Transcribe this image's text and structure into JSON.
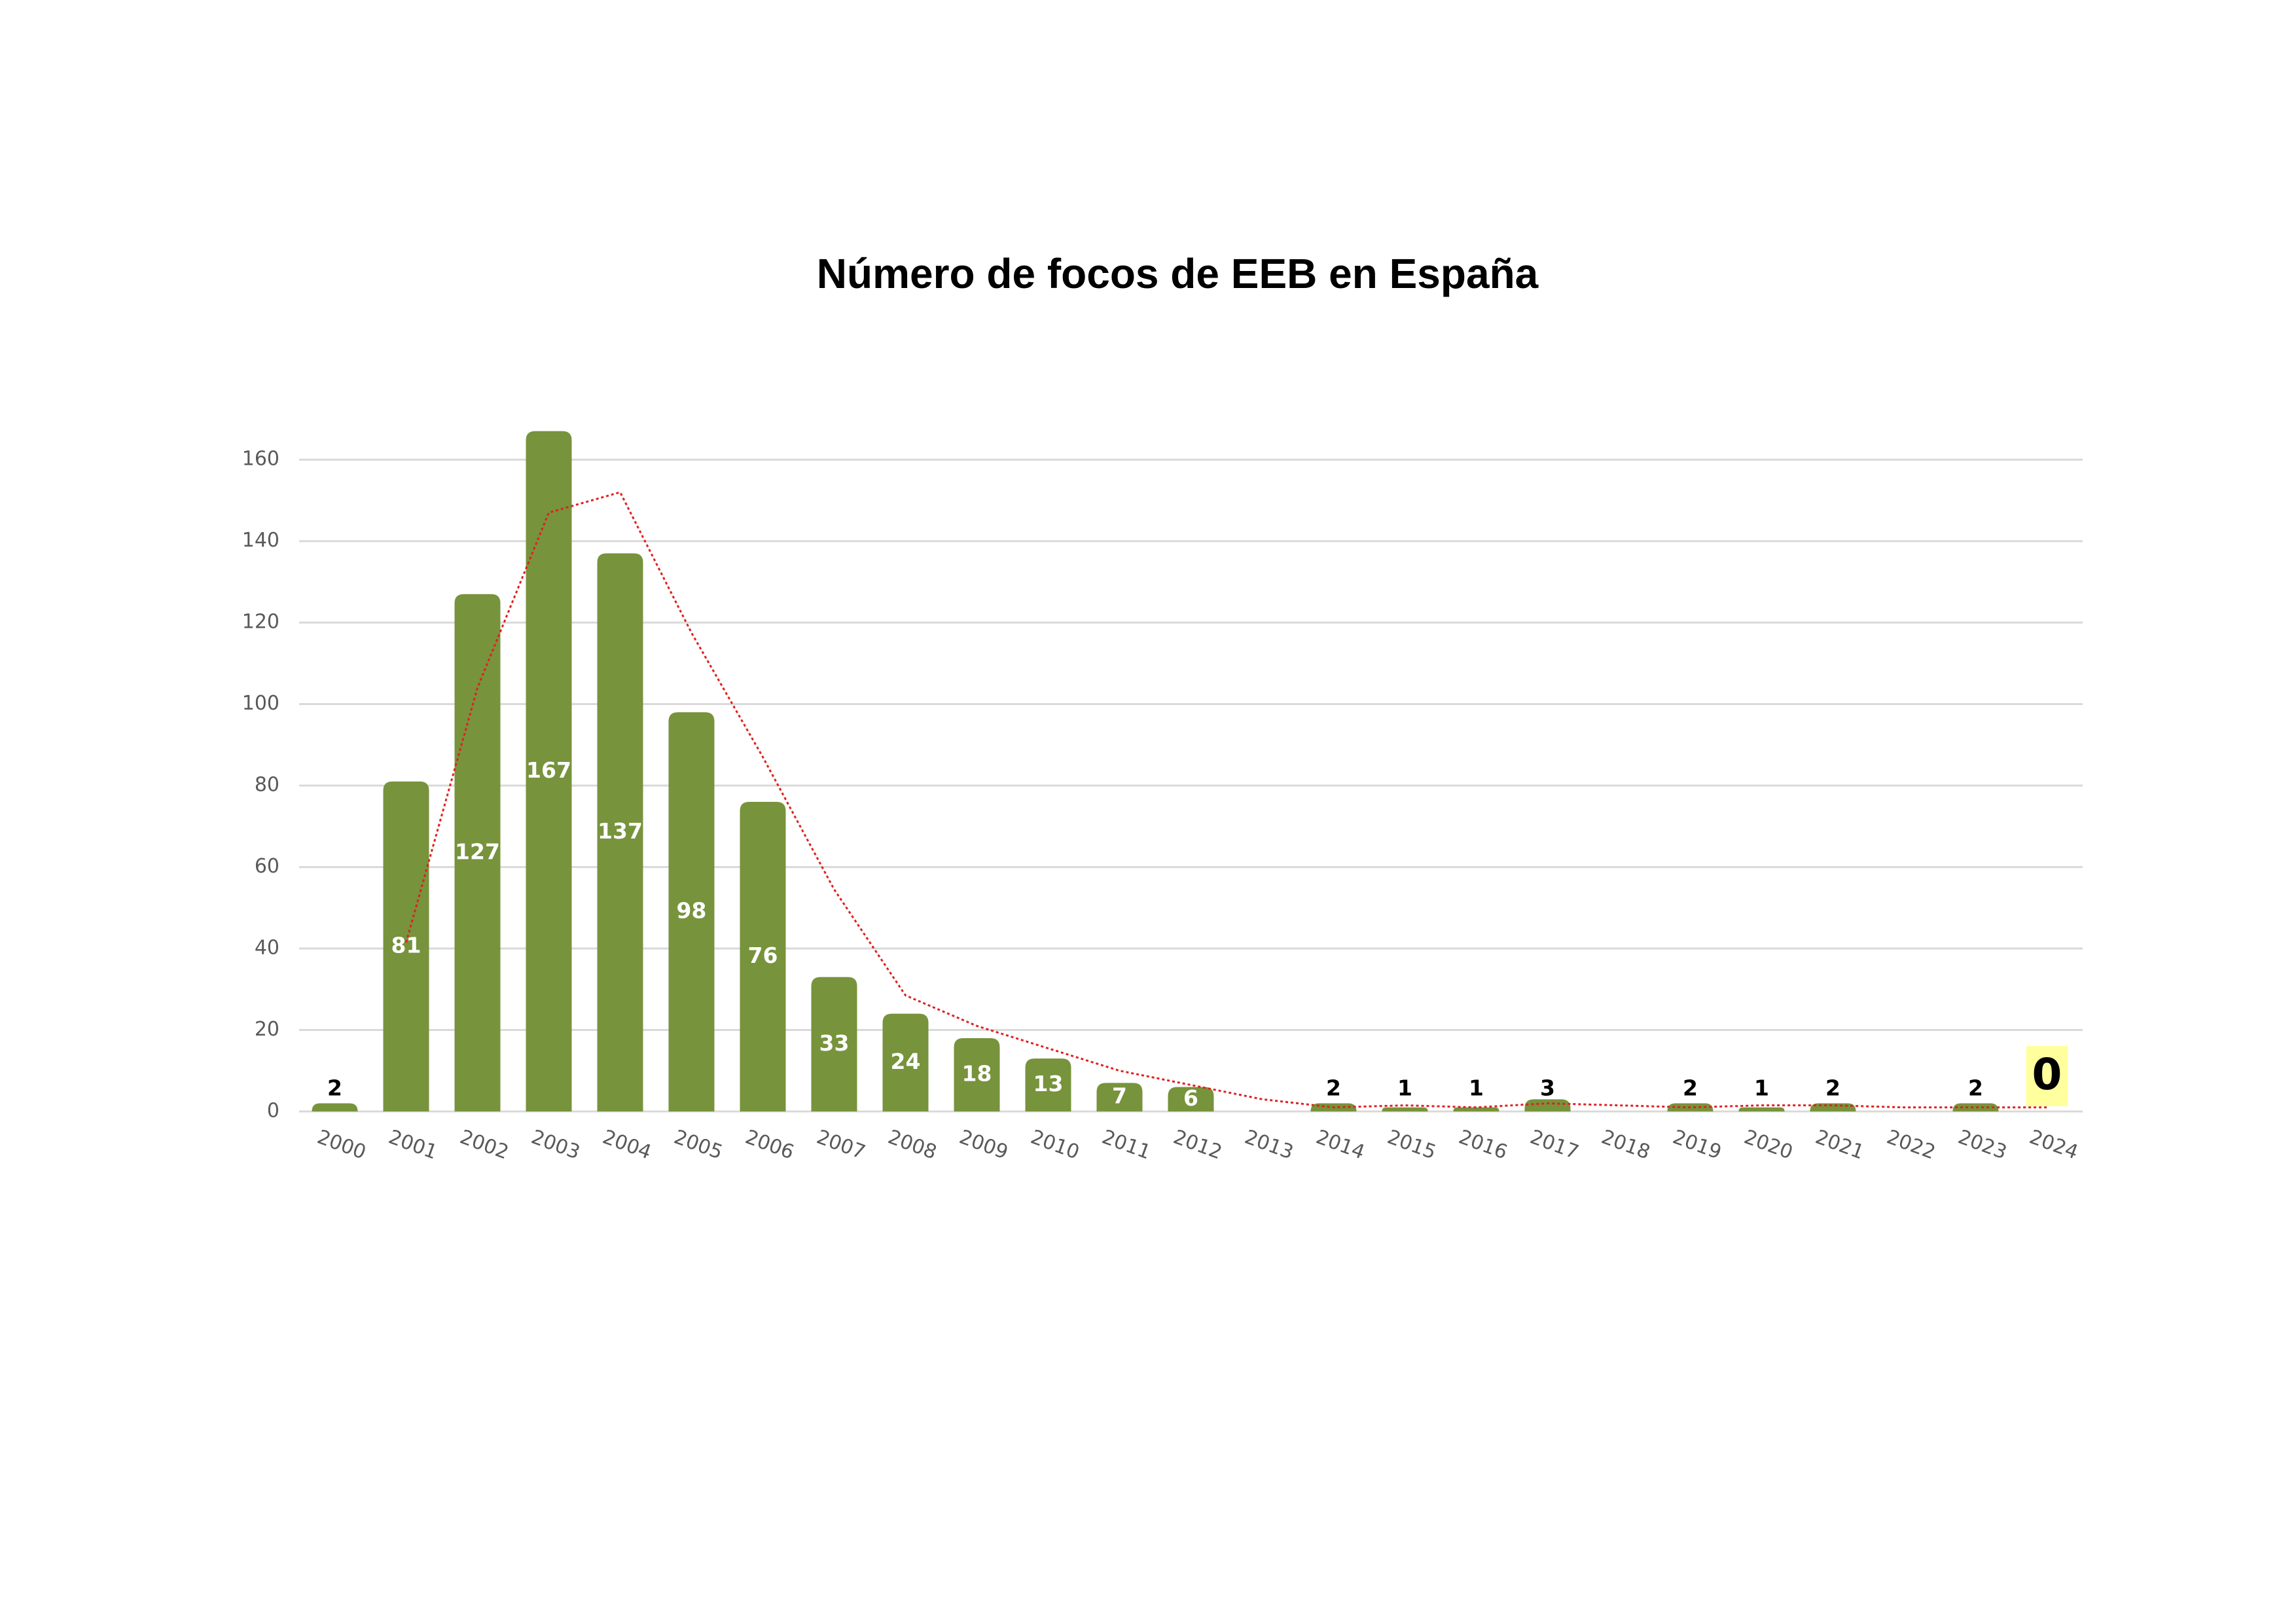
{
  "chart_data": {
    "type": "bar",
    "title": "Número de focos de EEB en España",
    "categories": [
      "2000",
      "2001",
      "2002",
      "2003",
      "2004",
      "2005",
      "2006",
      "2007",
      "2008",
      "2009",
      "2010",
      "2011",
      "2012",
      "2013",
      "2014",
      "2015",
      "2016",
      "2017",
      "2018",
      "2019",
      "2020",
      "2021",
      "2022",
      "2023",
      "2024"
    ],
    "values": [
      2,
      81,
      127,
      167,
      137,
      98,
      76,
      33,
      24,
      18,
      13,
      7,
      6,
      0,
      2,
      1,
      1,
      3,
      0,
      2,
      1,
      2,
      0,
      2,
      0
    ],
    "value_labels": [
      "2",
      "81",
      "127",
      "167",
      "137",
      "98",
      "76",
      "33",
      "24",
      "18",
      "13",
      "7",
      "6",
      null,
      "2",
      "1",
      "1",
      "3",
      null,
      "2",
      "1",
      "2",
      null,
      "2",
      "0"
    ],
    "color": "#77933c",
    "highlight": {
      "category_index": 24,
      "color": "#ffff9e"
    },
    "trend": {
      "type": "line",
      "color": "#e02020",
      "dotted": true,
      "values": [
        null,
        41.5,
        104,
        147,
        152,
        117.5,
        87,
        54.5,
        28.5,
        21,
        15.5,
        10,
        6.5,
        3,
        1,
        1.5,
        1,
        2,
        1.5,
        1,
        1.5,
        1.5,
        1,
        1,
        1
      ]
    },
    "ylim": [
      0,
      170
    ],
    "yticks": [
      0,
      20,
      40,
      60,
      80,
      100,
      120,
      140,
      160
    ],
    "grid": true
  }
}
